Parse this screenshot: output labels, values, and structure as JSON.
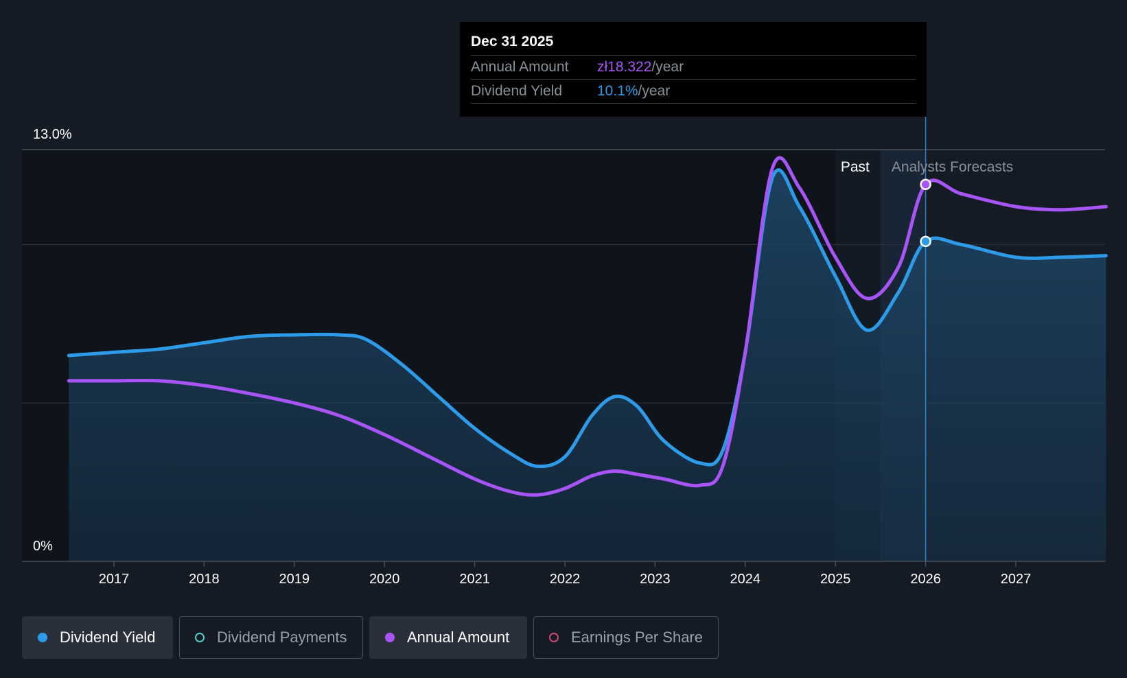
{
  "tooltip": {
    "date": "Dec 31 2025",
    "rows": [
      {
        "label": "Annual Amount",
        "value": "zł18.322",
        "unit": "/year"
      },
      {
        "label": "Dividend Yield",
        "value": "10.1%",
        "unit": "/year"
      }
    ]
  },
  "legend": [
    {
      "label": "Dividend Yield",
      "active": true,
      "color": "#2d9be8"
    },
    {
      "label": "Dividend Payments",
      "active": false,
      "color": "#4fd1c5"
    },
    {
      "label": "Annual Amount",
      "active": true,
      "color": "#a855f7"
    },
    {
      "label": "Earnings Per Share",
      "active": false,
      "color": "#d0467a"
    }
  ],
  "regions": {
    "past_label": "Past",
    "forecast_label": "Analysts Forecasts"
  },
  "colors": {
    "background": "#151b25",
    "dividend_yield": "#2d9be8",
    "annual_amount": "#a855f7"
  },
  "chart_data": {
    "type": "line",
    "ylabel": "",
    "xlabel": "",
    "y_tick_labels": [
      "13.0%",
      "0%"
    ],
    "ylim": [
      0,
      13.0
    ],
    "x_ticks": [
      "2017",
      "2018",
      "2019",
      "2020",
      "2021",
      "2022",
      "2023",
      "2024",
      "2025",
      "2026",
      "2027"
    ],
    "xlim": [
      2016.0,
      2028.0
    ],
    "past_forecast_boundary": 2025.5,
    "highlight_x": 2026.0,
    "series": [
      {
        "name": "Dividend Yield",
        "x": [
          2016.5,
          2017.0,
          2017.5,
          2018.0,
          2018.5,
          2019.0,
          2019.5,
          2019.8,
          2020.2,
          2020.6,
          2021.0,
          2021.4,
          2021.7,
          2022.0,
          2022.3,
          2022.55,
          2022.8,
          2023.1,
          2023.5,
          2023.75,
          2024.0,
          2024.3,
          2024.6,
          2025.0,
          2025.35,
          2025.7,
          2026.0,
          2026.4,
          2027.0,
          2027.5,
          2028.0
        ],
        "y": [
          6.5,
          6.6,
          6.7,
          6.9,
          7.1,
          7.15,
          7.15,
          7.0,
          6.2,
          5.2,
          4.2,
          3.4,
          3.0,
          3.3,
          4.6,
          5.2,
          4.9,
          3.8,
          3.1,
          3.5,
          6.6,
          12.1,
          11.2,
          9.0,
          7.3,
          8.5,
          10.1,
          10.0,
          9.6,
          9.6,
          9.65
        ]
      },
      {
        "name": "Annual Amount",
        "x": [
          2016.5,
          2017.0,
          2017.5,
          2018.0,
          2018.5,
          2019.0,
          2019.5,
          2020.0,
          2020.5,
          2021.0,
          2021.4,
          2021.7,
          2022.0,
          2022.3,
          2022.55,
          2022.8,
          2023.1,
          2023.5,
          2023.75,
          2024.0,
          2024.3,
          2024.6,
          2025.0,
          2025.35,
          2025.7,
          2026.0,
          2026.4,
          2027.0,
          2027.5,
          2028.0
        ],
        "y": [
          5.7,
          5.7,
          5.7,
          5.55,
          5.3,
          5.0,
          4.6,
          4.0,
          3.3,
          2.6,
          2.2,
          2.1,
          2.3,
          2.7,
          2.85,
          2.75,
          2.6,
          2.4,
          3.0,
          6.6,
          12.4,
          11.8,
          9.6,
          8.3,
          9.3,
          11.9,
          11.6,
          11.2,
          11.1,
          11.2
        ]
      }
    ]
  }
}
